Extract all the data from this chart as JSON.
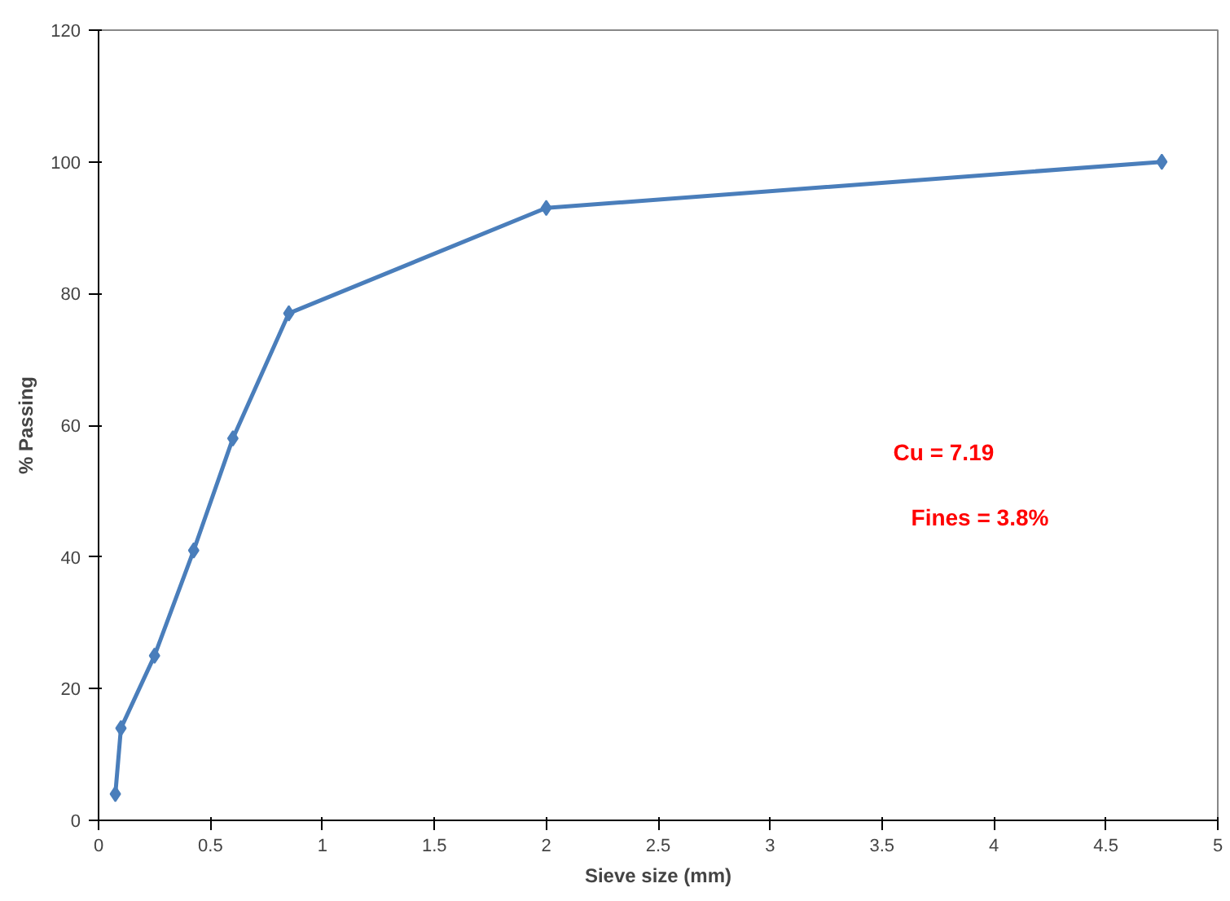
{
  "chart_data": {
    "type": "line",
    "xlabel": "Sieve size (mm)",
    "ylabel": "% Passing",
    "x": [
      0.075,
      0.1,
      0.25,
      0.425,
      0.6,
      0.85,
      2,
      4.75
    ],
    "series": [
      {
        "color": "#4a7ebb",
        "values": [
          4,
          14,
          25,
          41,
          58,
          77,
          93,
          100
        ]
      }
    ],
    "xlim": [
      0,
      5
    ],
    "xticks": [
      0,
      0.5,
      1,
      1.5,
      2,
      2.5,
      3,
      3.5,
      4,
      4.5,
      5
    ],
    "ylim": [
      0,
      120
    ],
    "yticks": [
      0,
      20,
      40,
      60,
      80,
      100,
      120
    ],
    "marker": "diamond",
    "line_style": "solid",
    "grid": false,
    "annotations": [
      "Cu = 7.19",
      "Fines = 3.8%"
    ]
  }
}
